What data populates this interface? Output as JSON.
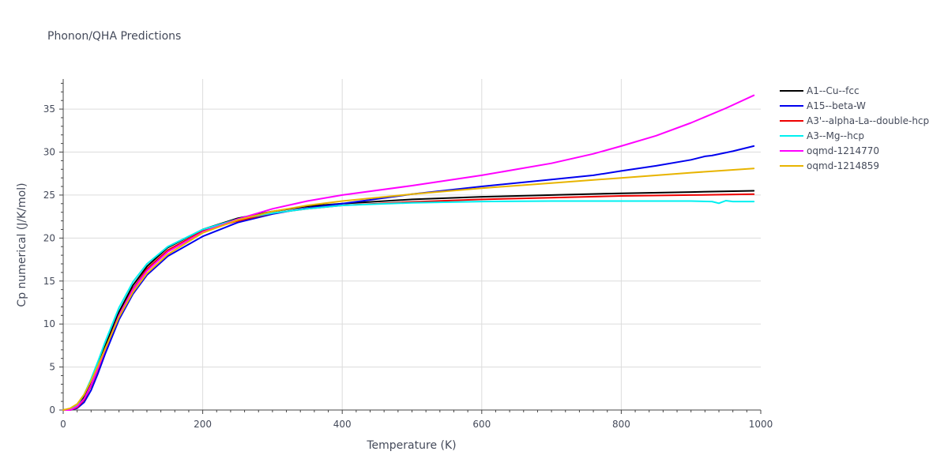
{
  "chart_data": {
    "type": "line",
    "title": "Phonon/QHA Predictions",
    "xlabel": "Temperature (K)",
    "ylabel": "Cp numerical (J/K/mol)",
    "xlim": [
      0,
      1000
    ],
    "ylim": [
      0,
      38.5
    ],
    "xticks": [
      0,
      200,
      400,
      600,
      800,
      1000
    ],
    "yticks": [
      0,
      5,
      10,
      15,
      20,
      25,
      30,
      35
    ],
    "grid": true,
    "legend_position": "top-right",
    "series": [
      {
        "name": "A1--Cu--fcc",
        "color": "#000000",
        "x": [
          0,
          10,
          20,
          30,
          40,
          50,
          60,
          80,
          100,
          120,
          150,
          200,
          250,
          300,
          350,
          400,
          500,
          600,
          700,
          800,
          900,
          990
        ],
        "y": [
          0,
          0.1,
          0.5,
          1.5,
          3.2,
          5.2,
          7.4,
          11.4,
          14.5,
          16.7,
          18.9,
          21.0,
          22.3,
          23.1,
          23.7,
          24.0,
          24.5,
          24.8,
          25.0,
          25.2,
          25.35,
          25.5
        ]
      },
      {
        "name": "A15--beta-W",
        "color": "#0000ee",
        "x": [
          0,
          10,
          20,
          30,
          40,
          50,
          60,
          80,
          100,
          120,
          150,
          200,
          250,
          300,
          350,
          400,
          500,
          600,
          700,
          760,
          800,
          850,
          900,
          920,
          930,
          960,
          990
        ],
        "y": [
          0,
          0,
          0.2,
          0.9,
          2.3,
          4.3,
          6.5,
          10.5,
          13.5,
          15.7,
          17.9,
          20.2,
          21.8,
          22.8,
          23.5,
          24.0,
          25.1,
          26.0,
          26.8,
          27.3,
          27.8,
          28.4,
          29.1,
          29.5,
          29.6,
          30.1,
          30.7
        ]
      },
      {
        "name": "A3'--alpha-La--double-hcp",
        "color": "#ee0000",
        "x": [
          0,
          10,
          20,
          30,
          40,
          50,
          60,
          80,
          100,
          120,
          150,
          200,
          250,
          300,
          350,
          400,
          500,
          600,
          700,
          800,
          900,
          990
        ],
        "y": [
          0,
          0,
          0.3,
          1.2,
          2.8,
          4.8,
          7.0,
          11.0,
          14.1,
          16.4,
          18.6,
          20.8,
          22.0,
          22.9,
          23.4,
          23.8,
          24.2,
          24.5,
          24.7,
          24.9,
          25.0,
          25.1
        ]
      },
      {
        "name": "A3--Mg--hcp",
        "color": "#00f0f0",
        "x": [
          0,
          10,
          20,
          30,
          40,
          50,
          60,
          80,
          100,
          120,
          150,
          200,
          250,
          300,
          350,
          400,
          500,
          600,
          700,
          800,
          900,
          930,
          940,
          950,
          960,
          990
        ],
        "y": [
          0,
          0.1,
          0.6,
          1.8,
          3.6,
          5.7,
          7.9,
          11.9,
          14.9,
          17.0,
          19.0,
          21.0,
          22.2,
          22.9,
          23.4,
          23.8,
          24.1,
          24.25,
          24.3,
          24.3,
          24.3,
          24.25,
          24.05,
          24.35,
          24.25,
          24.25
        ]
      },
      {
        "name": "oqmd-1214770",
        "color": "#ff00ff",
        "x": [
          0,
          10,
          20,
          30,
          40,
          50,
          60,
          80,
          100,
          120,
          150,
          200,
          250,
          300,
          350,
          400,
          500,
          600,
          700,
          760,
          800,
          850,
          900,
          950,
          990
        ],
        "y": [
          0,
          0,
          0.4,
          1.3,
          2.9,
          4.9,
          7.0,
          11.0,
          14.0,
          16.2,
          18.4,
          20.7,
          22.2,
          23.4,
          24.3,
          25.0,
          26.1,
          27.3,
          28.7,
          29.8,
          30.7,
          31.9,
          33.4,
          35.1,
          36.6
        ]
      },
      {
        "name": "oqmd-1214859",
        "color": "#e8b400",
        "x": [
          0,
          10,
          20,
          30,
          40,
          50,
          60,
          80,
          100,
          120,
          150,
          200,
          250,
          300,
          350,
          400,
          500,
          600,
          700,
          800,
          900,
          990
        ],
        "y": [
          0,
          0.2,
          0.7,
          1.8,
          3.4,
          5.2,
          7.1,
          10.8,
          13.7,
          15.9,
          18.1,
          20.6,
          22.1,
          23.1,
          23.8,
          24.3,
          25.1,
          25.8,
          26.4,
          27.0,
          27.6,
          28.1
        ]
      }
    ]
  }
}
